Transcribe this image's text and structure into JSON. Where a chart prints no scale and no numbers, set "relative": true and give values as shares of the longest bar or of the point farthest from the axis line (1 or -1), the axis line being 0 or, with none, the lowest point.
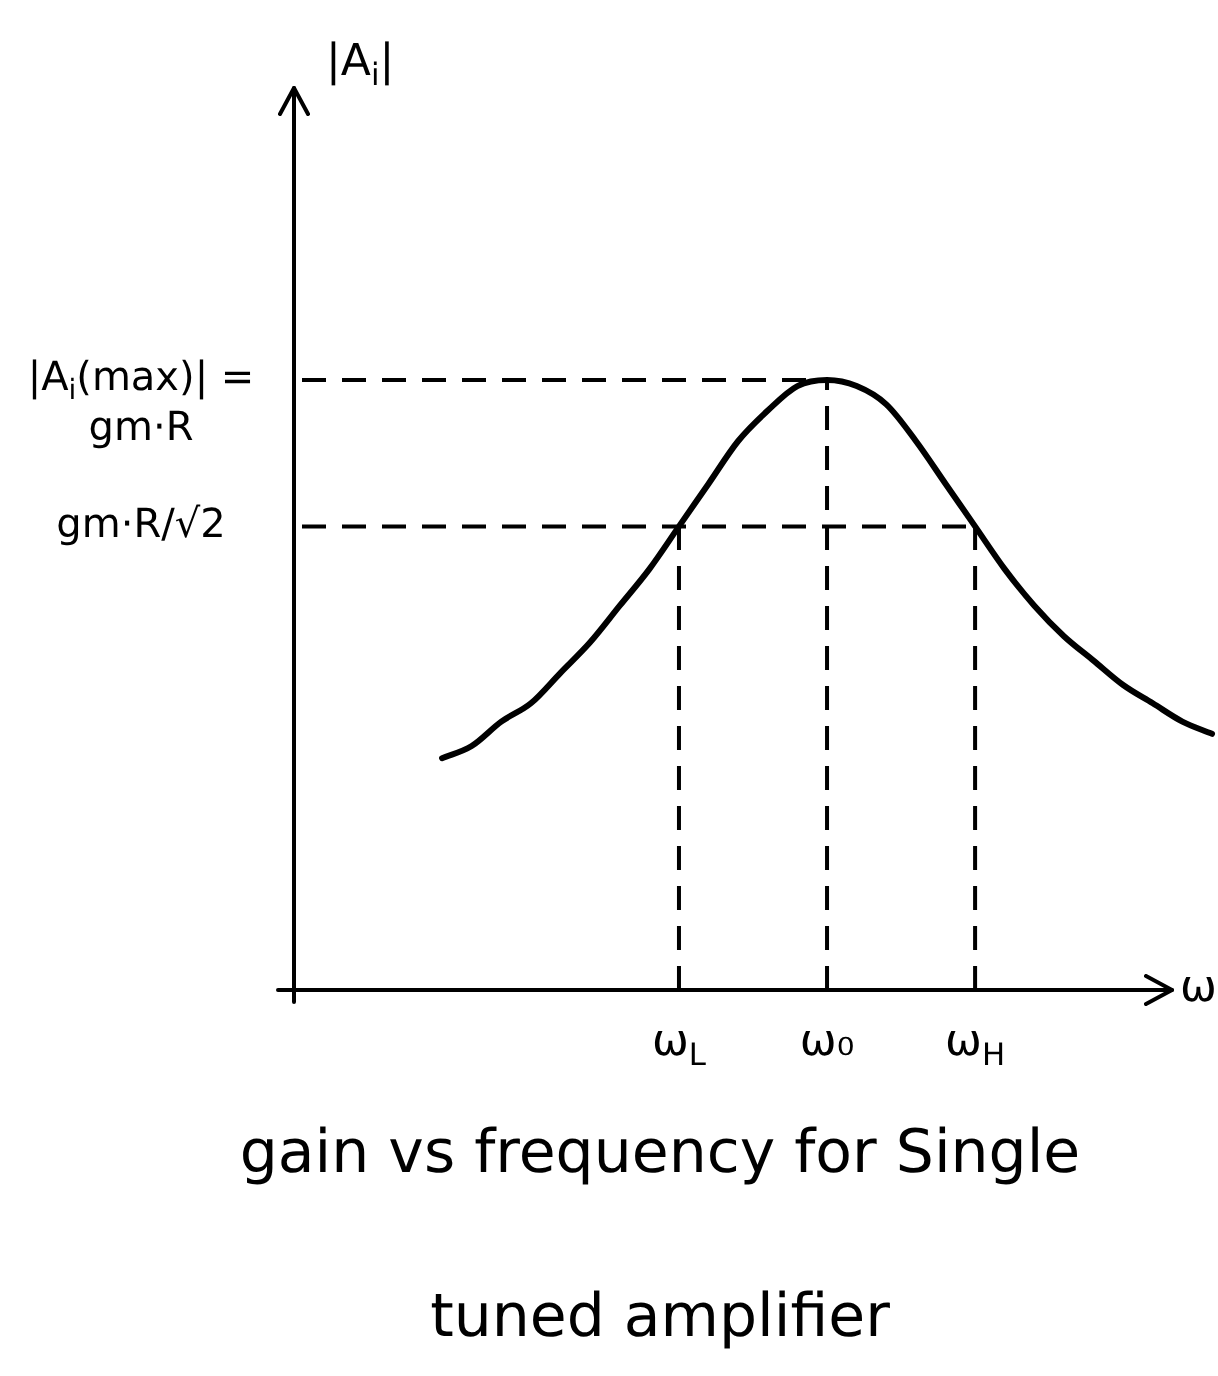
{
  "chart_data": {
    "type": "line",
    "title": "gain vs frequency for Single tuned amplifier",
    "xlabel": "ω",
    "annotations": [
      "|A$_{i}$|"
    ],
    "categories": [
      null,
      null,
      null,
      null,
      null,
      null,
      null,
      null,
      "ω$_{L}$",
      null,
      null,
      null,
      null,
      "ω₀",
      null,
      null,
      null,
      null,
      "ω$_{H}$",
      null,
      null,
      null,
      null,
      null,
      null,
      null,
      null
    ],
    "values": [
      0.38,
      0.4,
      0.44,
      0.47,
      0.52,
      0.57,
      0.63,
      0.69,
      0.76,
      0.83,
      0.9,
      0.95,
      0.99,
      1,
      0.99,
      0.96,
      0.9,
      0.83,
      0.76,
      0.69,
      0.63,
      0.58,
      0.54,
      0.5,
      0.47,
      0.44,
      0.42
    ],
    "color": "#000000",
    "relative": true,
    "tick_labels": "x",
    "ref_lines": [
      {
        "axis": "y",
        "value": 1,
        "label": "|A$_{i}$(max)| = gm·R",
        "line_style": "dashed"
      },
      {
        "axis": "y",
        "value": 0.76,
        "label": "gm·R/√2",
        "line_style": "dashed"
      },
      {
        "axis": "x",
        "value": "ω$_{L}$",
        "line_style": "dashed"
      },
      {
        "axis": "x",
        "value": "ω₀",
        "line_style": "dashed"
      },
      {
        "axis": "x",
        "value": "ω$_{H}$",
        "line_style": "dashed"
      }
    ]
  }
}
